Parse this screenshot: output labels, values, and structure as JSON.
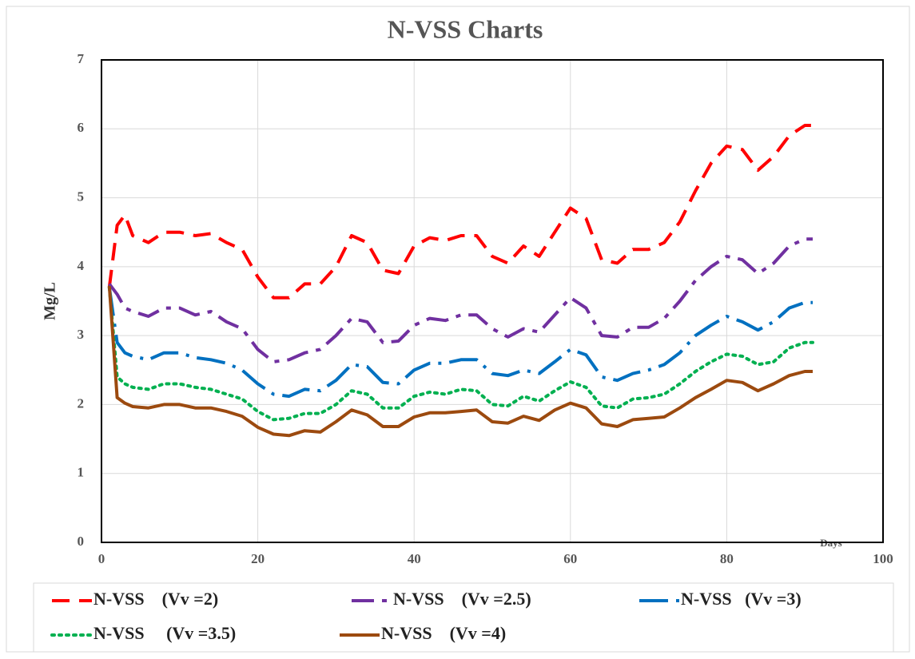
{
  "chart_data": {
    "type": "line",
    "title": "N-VSS Charts",
    "x_label": "Days",
    "y_label": "Mg/L",
    "x": [
      1,
      2,
      3,
      4,
      6,
      8,
      10,
      12,
      14,
      16,
      18,
      20,
      22,
      24,
      26,
      28,
      30,
      32,
      34,
      36,
      38,
      40,
      42,
      44,
      46,
      48,
      50,
      52,
      54,
      56,
      58,
      60,
      62,
      64,
      66,
      68,
      70,
      72,
      74,
      76,
      78,
      80,
      82,
      84,
      86,
      88,
      90,
      91
    ],
    "series": [
      {
        "name": "N-VSS    (Vv =2)",
        "color": "#ff0000",
        "dash": "dashed",
        "values": [
          3.7,
          4.6,
          4.75,
          4.45,
          4.35,
          4.5,
          4.5,
          4.45,
          4.48,
          4.35,
          4.25,
          3.85,
          3.55,
          3.55,
          3.75,
          3.75,
          4.0,
          4.45,
          4.35,
          3.95,
          3.9,
          4.3,
          4.42,
          4.38,
          4.45,
          4.45,
          4.15,
          4.05,
          4.3,
          4.15,
          4.5,
          4.85,
          4.7,
          4.1,
          4.05,
          4.25,
          4.25,
          4.35,
          4.65,
          5.1,
          5.5,
          5.75,
          5.7,
          5.4,
          5.6,
          5.9,
          6.05,
          6.05
        ]
      },
      {
        "name": "N-VSS    (Vv =2.5)",
        "color": "#7030a0",
        "dash": "dashdot",
        "values": [
          3.75,
          3.6,
          3.4,
          3.35,
          3.28,
          3.4,
          3.4,
          3.3,
          3.35,
          3.2,
          3.1,
          2.8,
          2.62,
          2.65,
          2.75,
          2.8,
          3.0,
          3.25,
          3.2,
          2.9,
          2.92,
          3.15,
          3.25,
          3.22,
          3.3,
          3.3,
          3.1,
          2.98,
          3.1,
          3.05,
          3.3,
          3.55,
          3.4,
          3.0,
          2.98,
          3.12,
          3.12,
          3.25,
          3.5,
          3.8,
          4.0,
          4.15,
          4.1,
          3.9,
          4.05,
          4.3,
          4.4,
          4.4
        ]
      },
      {
        "name": "N-VSS   (Vv =3)",
        "color": "#0070c0",
        "dash": "dashdot2",
        "values": [
          3.7,
          2.9,
          2.75,
          2.7,
          2.65,
          2.75,
          2.75,
          2.68,
          2.65,
          2.6,
          2.5,
          2.3,
          2.15,
          2.12,
          2.22,
          2.2,
          2.35,
          2.58,
          2.55,
          2.32,
          2.3,
          2.5,
          2.6,
          2.6,
          2.65,
          2.65,
          2.45,
          2.42,
          2.5,
          2.45,
          2.62,
          2.8,
          2.72,
          2.4,
          2.35,
          2.45,
          2.5,
          2.58,
          2.75,
          3.0,
          3.15,
          3.28,
          3.2,
          3.08,
          3.2,
          3.4,
          3.48,
          3.48
        ]
      },
      {
        "name": "N-VSS     (Vv =3.5)",
        "color": "#00b050",
        "dash": "dotted",
        "values": [
          3.7,
          2.4,
          2.3,
          2.25,
          2.22,
          2.3,
          2.3,
          2.25,
          2.22,
          2.15,
          2.08,
          1.9,
          1.78,
          1.8,
          1.87,
          1.87,
          2.0,
          2.2,
          2.15,
          1.95,
          1.95,
          2.12,
          2.18,
          2.15,
          2.22,
          2.2,
          2.0,
          1.98,
          2.12,
          2.05,
          2.2,
          2.33,
          2.25,
          1.98,
          1.95,
          2.08,
          2.1,
          2.15,
          2.3,
          2.48,
          2.62,
          2.73,
          2.7,
          2.58,
          2.62,
          2.82,
          2.9,
          2.9
        ]
      },
      {
        "name": "N-VSS    (Vv =4)",
        "color": "#9c4a0f",
        "dash": "solid",
        "values": [
          3.72,
          2.1,
          2.02,
          1.97,
          1.95,
          2.0,
          2.0,
          1.95,
          1.95,
          1.9,
          1.83,
          1.67,
          1.57,
          1.55,
          1.62,
          1.6,
          1.75,
          1.92,
          1.85,
          1.68,
          1.68,
          1.82,
          1.88,
          1.88,
          1.9,
          1.92,
          1.75,
          1.73,
          1.83,
          1.77,
          1.92,
          2.02,
          1.95,
          1.72,
          1.68,
          1.78,
          1.8,
          1.82,
          1.95,
          2.1,
          2.22,
          2.35,
          2.32,
          2.2,
          2.3,
          2.42,
          2.48,
          2.48
        ]
      }
    ],
    "xlim": [
      0,
      100
    ],
    "xticks": [
      0,
      20,
      40,
      60,
      80,
      100
    ],
    "ylim": [
      0,
      7
    ],
    "yticks": [
      0,
      1,
      2,
      3,
      4,
      5,
      6,
      7
    ],
    "grid": true
  }
}
